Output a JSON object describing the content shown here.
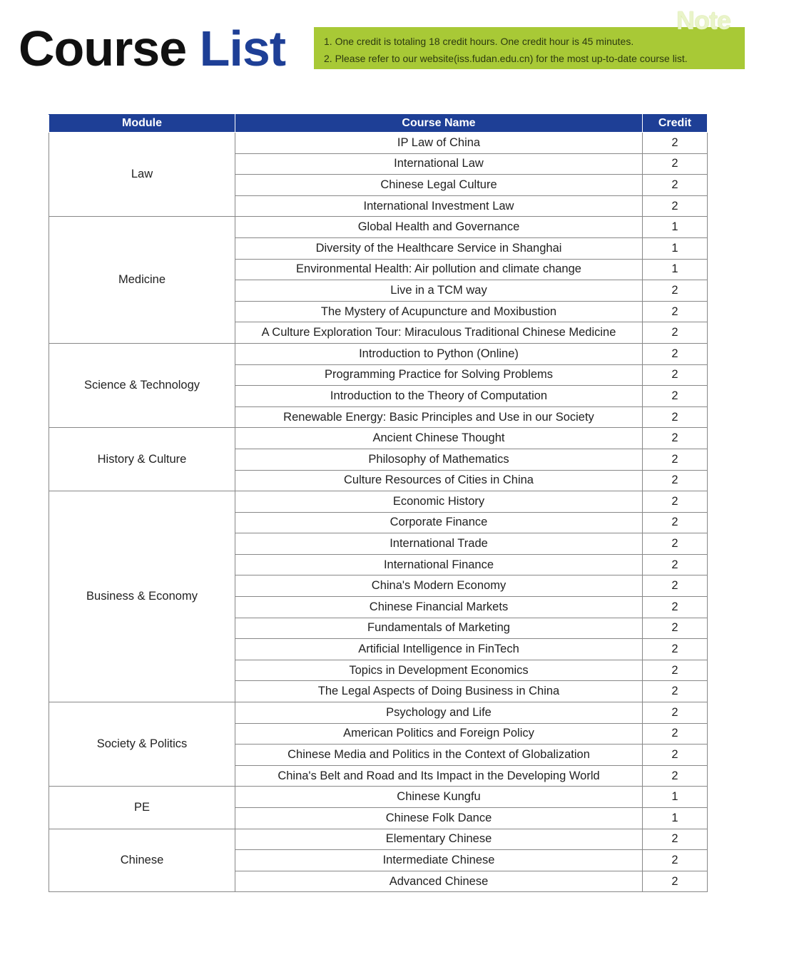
{
  "title": {
    "part1": "Course",
    "part2": "List"
  },
  "note": {
    "tag": "Note",
    "lines": [
      "1. One credit is totaling 18 credit hours. One credit hour is 45 minutes.",
      "2. Please refer to our website(iss.fudan.edu.cn) for the most up-to-date course list."
    ]
  },
  "colors": {
    "header_blue": "#1e3f96",
    "note_green": "#a8c936"
  },
  "table": {
    "headers": [
      "Module",
      "Course Name",
      "Credit"
    ],
    "modules": [
      {
        "name": "Law",
        "courses": [
          [
            "IP Law of China",
            "2"
          ],
          [
            "International Law",
            "2"
          ],
          [
            "Chinese Legal Culture",
            "2"
          ],
          [
            "International Investment Law",
            "2"
          ]
        ]
      },
      {
        "name": "Medicine",
        "courses": [
          [
            "Global Health and Governance",
            "1"
          ],
          [
            "Diversity of the Healthcare Service in Shanghai",
            "1"
          ],
          [
            "Environmental Health: Air pollution and climate change",
            "1"
          ],
          [
            "Live in a TCM way",
            "2"
          ],
          [
            "The Mystery of Acupuncture and Moxibustion",
            "2"
          ],
          [
            "A Culture Exploration Tour:  Miraculous Traditional Chinese Medicine",
            "2"
          ]
        ]
      },
      {
        "name": "Science & Technology",
        "courses": [
          [
            "Introduction to Python (Online)",
            "2"
          ],
          [
            "Programming Practice for Solving Problems",
            "2"
          ],
          [
            "Introduction to the Theory of Computation",
            "2"
          ],
          [
            "Renewable Energy: Basic Principles and Use in our Society",
            "2"
          ]
        ]
      },
      {
        "name": "History & Culture",
        "courses": [
          [
            "Ancient Chinese Thought",
            "2"
          ],
          [
            "Philosophy of Mathematics",
            "2"
          ],
          [
            "Culture Resources of Cities in China",
            "2"
          ]
        ]
      },
      {
        "name": "Business & Economy",
        "courses": [
          [
            "Economic History",
            "2"
          ],
          [
            "Corporate Finance",
            "2"
          ],
          [
            "International Trade",
            "2"
          ],
          [
            "International Finance",
            "2"
          ],
          [
            "China's Modern Economy",
            "2"
          ],
          [
            "Chinese Financial Markets",
            "2"
          ],
          [
            "Fundamentals of Marketing",
            "2"
          ],
          [
            "Artificial Intelligence in FinTech",
            "2"
          ],
          [
            "Topics in Development Economics",
            "2"
          ],
          [
            "The Legal Aspects of Doing Business in China",
            "2"
          ]
        ]
      },
      {
        "name": "Society & Politics",
        "courses": [
          [
            "Psychology and Life",
            "2"
          ],
          [
            "American Politics and Foreign Policy",
            "2"
          ],
          [
            "Chinese Media and Politics in the Context of Globalization",
            "2"
          ],
          [
            "China's Belt and Road and Its Impact in the Developing World",
            "2"
          ]
        ]
      },
      {
        "name": "PE",
        "courses": [
          [
            "Chinese Kungfu",
            "1"
          ],
          [
            "Chinese Folk Dance",
            "1"
          ]
        ]
      },
      {
        "name": "Chinese",
        "courses": [
          [
            "Elementary Chinese",
            "2"
          ],
          [
            "Intermediate Chinese",
            "2"
          ],
          [
            "Advanced Chinese",
            "2"
          ]
        ]
      }
    ]
  }
}
